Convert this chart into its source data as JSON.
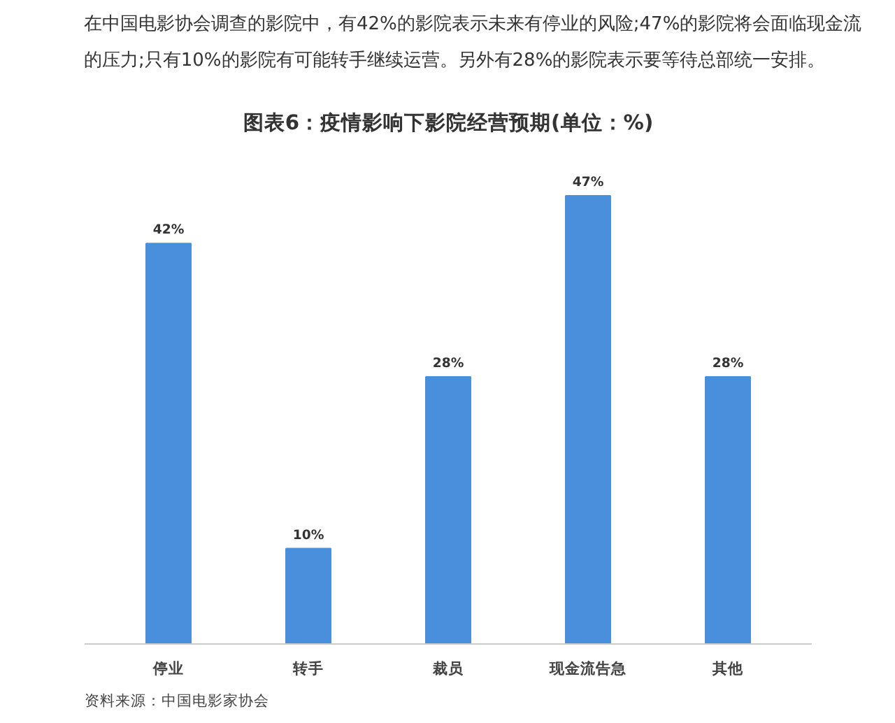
{
  "chart_data": {
    "type": "bar",
    "title": "图表6：疫情影响下影院经营预期(单位：%)",
    "categories": [
      "停业",
      "转手",
      "裁员",
      "现金流告急",
      "其他"
    ],
    "values": [
      42,
      10,
      28,
      47,
      28
    ],
    "value_labels": [
      "42%",
      "10%",
      "28%",
      "47%",
      "28%"
    ],
    "color": "#4a8fdc",
    "grid": false,
    "annotations": [
      "在中国电影协会调查的影院中，有42%的影院表示未来有停业的风险;47%的影院将会面临现金流的压力;只有10%的影院有可能转手继续运营。另外有28%的影院表示要等待总部统一安排。",
      "资料来源：中国电影家协会"
    ]
  }
}
